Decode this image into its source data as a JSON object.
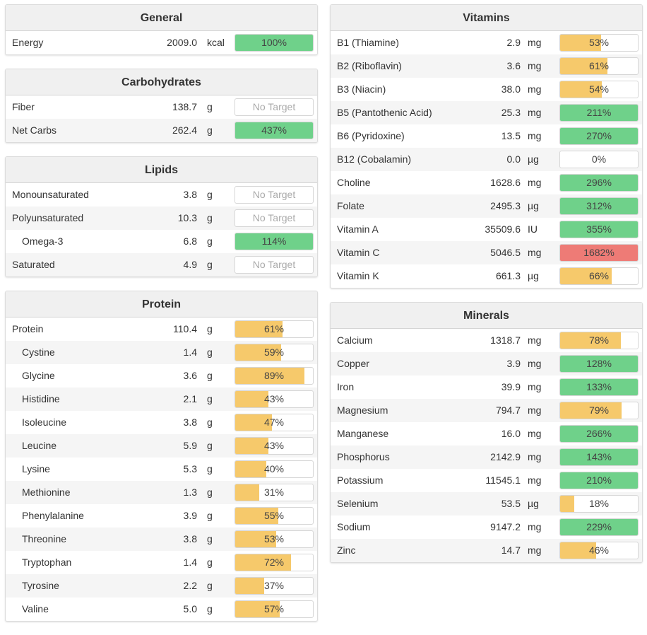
{
  "colors": {
    "green": "#6fd18a",
    "yellow": "#f6c96b",
    "red": "#ee7b76"
  },
  "left_panels": [
    {
      "title": "General",
      "rows": [
        {
          "name": "Energy",
          "amount": "2009.0",
          "unit": "kcal",
          "pct_label": "100%",
          "pct": 100,
          "color": "green"
        }
      ]
    },
    {
      "title": "Carbohydrates",
      "rows": [
        {
          "name": "Fiber",
          "amount": "138.7",
          "unit": "g",
          "pct_label": "No Target",
          "pct": null,
          "color": "none"
        },
        {
          "name": "Net Carbs",
          "amount": "262.4",
          "unit": "g",
          "pct_label": "437%",
          "pct": 437,
          "color": "green"
        }
      ]
    },
    {
      "title": "Lipids",
      "rows": [
        {
          "name": "Monounsaturated",
          "amount": "3.8",
          "unit": "g",
          "pct_label": "No Target",
          "pct": null,
          "color": "none"
        },
        {
          "name": "Polyunsaturated",
          "amount": "10.3",
          "unit": "g",
          "pct_label": "No Target",
          "pct": null,
          "color": "none"
        },
        {
          "name": "Omega-3",
          "amount": "6.8",
          "unit": "g",
          "pct_label": "114%",
          "pct": 114,
          "color": "green",
          "indent": true
        },
        {
          "name": "Saturated",
          "amount": "4.9",
          "unit": "g",
          "pct_label": "No Target",
          "pct": null,
          "color": "none"
        }
      ]
    },
    {
      "title": "Protein",
      "rows": [
        {
          "name": "Protein",
          "amount": "110.4",
          "unit": "g",
          "pct_label": "61%",
          "pct": 61,
          "color": "yellow"
        },
        {
          "name": "Cystine",
          "amount": "1.4",
          "unit": "g",
          "pct_label": "59%",
          "pct": 59,
          "color": "yellow",
          "indent": true
        },
        {
          "name": "Glycine",
          "amount": "3.6",
          "unit": "g",
          "pct_label": "89%",
          "pct": 89,
          "color": "yellow",
          "indent": true
        },
        {
          "name": "Histidine",
          "amount": "2.1",
          "unit": "g",
          "pct_label": "43%",
          "pct": 43,
          "color": "yellow",
          "indent": true
        },
        {
          "name": "Isoleucine",
          "amount": "3.8",
          "unit": "g",
          "pct_label": "47%",
          "pct": 47,
          "color": "yellow",
          "indent": true
        },
        {
          "name": "Leucine",
          "amount": "5.9",
          "unit": "g",
          "pct_label": "43%",
          "pct": 43,
          "color": "yellow",
          "indent": true
        },
        {
          "name": "Lysine",
          "amount": "5.3",
          "unit": "g",
          "pct_label": "40%",
          "pct": 40,
          "color": "yellow",
          "indent": true
        },
        {
          "name": "Methionine",
          "amount": "1.3",
          "unit": "g",
          "pct_label": "31%",
          "pct": 31,
          "color": "yellow",
          "indent": true
        },
        {
          "name": "Phenylalanine",
          "amount": "3.9",
          "unit": "g",
          "pct_label": "55%",
          "pct": 55,
          "color": "yellow",
          "indent": true
        },
        {
          "name": "Threonine",
          "amount": "3.8",
          "unit": "g",
          "pct_label": "53%",
          "pct": 53,
          "color": "yellow",
          "indent": true
        },
        {
          "name": "Tryptophan",
          "amount": "1.4",
          "unit": "g",
          "pct_label": "72%",
          "pct": 72,
          "color": "yellow",
          "indent": true
        },
        {
          "name": "Tyrosine",
          "amount": "2.2",
          "unit": "g",
          "pct_label": "37%",
          "pct": 37,
          "color": "yellow",
          "indent": true
        },
        {
          "name": "Valine",
          "amount": "5.0",
          "unit": "g",
          "pct_label": "57%",
          "pct": 57,
          "color": "yellow",
          "indent": true
        }
      ]
    }
  ],
  "right_panels": [
    {
      "title": "Vitamins",
      "rows": [
        {
          "name": "B1 (Thiamine)",
          "amount": "2.9",
          "unit": "mg",
          "pct_label": "53%",
          "pct": 53,
          "color": "yellow"
        },
        {
          "name": "B2 (Riboflavin)",
          "amount": "3.6",
          "unit": "mg",
          "pct_label": "61%",
          "pct": 61,
          "color": "yellow"
        },
        {
          "name": "B3 (Niacin)",
          "amount": "38.0",
          "unit": "mg",
          "pct_label": "54%",
          "pct": 54,
          "color": "yellow"
        },
        {
          "name": "B5 (Pantothenic Acid)",
          "amount": "25.3",
          "unit": "mg",
          "pct_label": "211%",
          "pct": 211,
          "color": "green"
        },
        {
          "name": "B6 (Pyridoxine)",
          "amount": "13.5",
          "unit": "mg",
          "pct_label": "270%",
          "pct": 270,
          "color": "green"
        },
        {
          "name": "B12 (Cobalamin)",
          "amount": "0.0",
          "unit": "µg",
          "pct_label": "0%",
          "pct": 0,
          "color": "yellow"
        },
        {
          "name": "Choline",
          "amount": "1628.6",
          "unit": "mg",
          "pct_label": "296%",
          "pct": 296,
          "color": "green"
        },
        {
          "name": "Folate",
          "amount": "2495.3",
          "unit": "µg",
          "pct_label": "312%",
          "pct": 312,
          "color": "green"
        },
        {
          "name": "Vitamin A",
          "amount": "35509.6",
          "unit": "IU",
          "pct_label": "355%",
          "pct": 355,
          "color": "green"
        },
        {
          "name": "Vitamin C",
          "amount": "5046.5",
          "unit": "mg",
          "pct_label": "1682%",
          "pct": 1682,
          "color": "red"
        },
        {
          "name": "Vitamin K",
          "amount": "661.3",
          "unit": "µg",
          "pct_label": "66%",
          "pct": 66,
          "color": "yellow"
        }
      ]
    },
    {
      "title": "Minerals",
      "rows": [
        {
          "name": "Calcium",
          "amount": "1318.7",
          "unit": "mg",
          "pct_label": "78%",
          "pct": 78,
          "color": "yellow"
        },
        {
          "name": "Copper",
          "amount": "3.9",
          "unit": "mg",
          "pct_label": "128%",
          "pct": 128,
          "color": "green"
        },
        {
          "name": "Iron",
          "amount": "39.9",
          "unit": "mg",
          "pct_label": "133%",
          "pct": 133,
          "color": "green"
        },
        {
          "name": "Magnesium",
          "amount": "794.7",
          "unit": "mg",
          "pct_label": "79%",
          "pct": 79,
          "color": "yellow"
        },
        {
          "name": "Manganese",
          "amount": "16.0",
          "unit": "mg",
          "pct_label": "266%",
          "pct": 266,
          "color": "green"
        },
        {
          "name": "Phosphorus",
          "amount": "2142.9",
          "unit": "mg",
          "pct_label": "143%",
          "pct": 143,
          "color": "green"
        },
        {
          "name": "Potassium",
          "amount": "11545.1",
          "unit": "mg",
          "pct_label": "210%",
          "pct": 210,
          "color": "green"
        },
        {
          "name": "Selenium",
          "amount": "53.5",
          "unit": "µg",
          "pct_label": "18%",
          "pct": 18,
          "color": "yellow"
        },
        {
          "name": "Sodium",
          "amount": "9147.2",
          "unit": "mg",
          "pct_label": "229%",
          "pct": 229,
          "color": "green"
        },
        {
          "name": "Zinc",
          "amount": "14.7",
          "unit": "mg",
          "pct_label": "46%",
          "pct": 46,
          "color": "yellow"
        }
      ]
    }
  ]
}
